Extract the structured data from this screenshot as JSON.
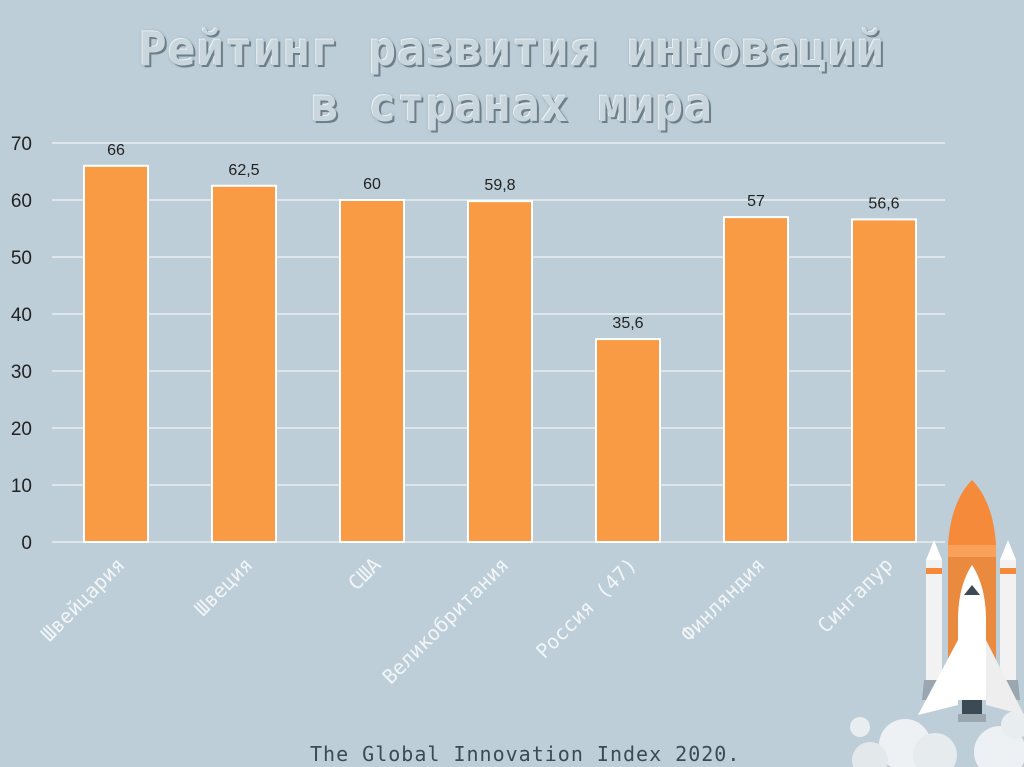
{
  "slide": {
    "title_line1": "Рейтинг развития инноваций",
    "title_line2": "в странах мира",
    "source": "The Global Innovation Index 2020."
  },
  "colors": {
    "bar": "#f99b45",
    "background": "#bdced8",
    "grid": "#ffffff"
  },
  "decoration": {
    "icon": "rocket-icon"
  },
  "chart_data": {
    "type": "bar",
    "title": "",
    "xlabel": "",
    "ylabel": "",
    "ylim": [
      0,
      70
    ],
    "yticks": [
      0,
      10,
      20,
      30,
      40,
      50,
      60,
      70
    ],
    "grid": true,
    "legend": "none",
    "categories": [
      "Швейцария",
      "Швеция",
      "США",
      "Великобритания",
      "Россия (47)",
      "Финляндия",
      "Сингапур"
    ],
    "values": [
      66,
      62.5,
      60,
      59.8,
      35.6,
      57,
      56.6
    ],
    "data_labels": [
      "66",
      "62,5",
      "60",
      "59,8",
      "35,6",
      "57",
      "56,6"
    ]
  }
}
